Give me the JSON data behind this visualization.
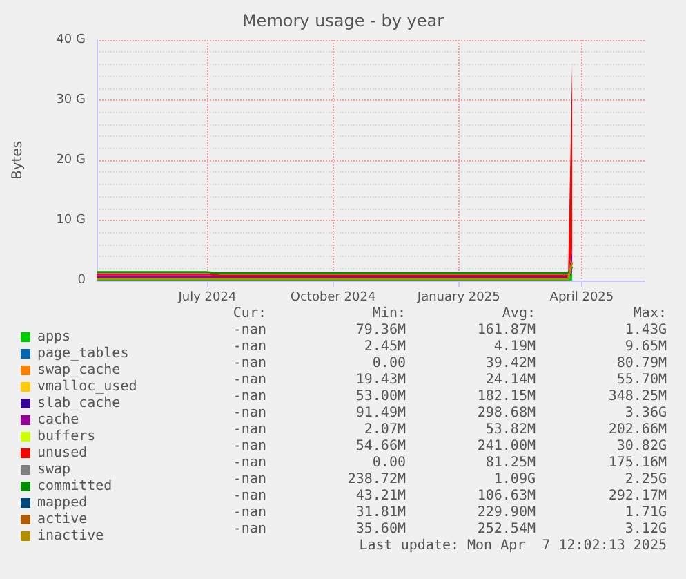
{
  "chart_data": {
    "type": "area",
    "title": "Memory usage - by year",
    "ylabel": "Bytes",
    "stacked": true,
    "grid": true,
    "legend": "bottom",
    "marker": "none",
    "line_style": "solid",
    "x": [
      "2024-04-11",
      "2024-05-20",
      "2024-06-30",
      "2024-07-10",
      "2024-08-20",
      "2024-10-01",
      "2024-11-15",
      "2025-01-01",
      "2025-02-15",
      "2025-03-22",
      "2025-03-25"
    ],
    "xlim": [
      "2024-04-11",
      "2025-05-17"
    ],
    "xticks": [
      {
        "value": "2024-07-01",
        "label": "July 2024"
      },
      {
        "value": "2024-10-01",
        "label": "October 2024"
      },
      {
        "value": "2025-01-01",
        "label": "January 2025"
      },
      {
        "value": "2025-04-01",
        "label": "April 2025"
      }
    ],
    "ylim": [
      0,
      40
    ],
    "yticks": [
      0,
      {
        "value": 10,
        "label": "10 G"
      },
      {
        "value": 20,
        "label": "20 G"
      },
      {
        "value": 30,
        "label": "30 G"
      },
      {
        "value": 40,
        "label": "40 G"
      }
    ],
    "series": [
      {
        "name": "apps",
        "color": "#00cc00",
        "values": [
          0.2,
          0.2,
          0.2,
          0.2,
          0.2,
          0.2,
          0.2,
          0.2,
          0.2,
          0.2,
          1.4
        ]
      },
      {
        "name": "page_tables",
        "color": "#0066b3",
        "values": [
          null,
          null,
          null,
          null,
          null,
          null,
          null,
          null,
          null,
          null,
          null
        ]
      },
      {
        "name": "swap_cache",
        "color": "#ff8000",
        "values": [
          null,
          null,
          null,
          null,
          null,
          null,
          null,
          null,
          null,
          null,
          null
        ]
      },
      {
        "name": "vmalloc_used",
        "color": "#ffcc00",
        "values": [
          null,
          null,
          null,
          null,
          null,
          null,
          null,
          null,
          null,
          null,
          null
        ]
      },
      {
        "name": "slab_cache",
        "color": "#330099",
        "values": [
          0.2,
          0.2,
          0.2,
          0.2,
          0.2,
          0.2,
          0.2,
          0.2,
          0.2,
          0.2,
          0.3
        ]
      },
      {
        "name": "cache",
        "color": "#990099",
        "values": [
          0.5,
          0.5,
          0.5,
          0.3,
          0.3,
          0.3,
          0.3,
          0.3,
          0.3,
          0.3,
          3.4
        ]
      },
      {
        "name": "buffers",
        "color": "#ccff00",
        "values": [
          null,
          null,
          null,
          null,
          null,
          null,
          null,
          null,
          null,
          null,
          null
        ]
      },
      {
        "name": "unused",
        "color": "#ff0000",
        "values": [
          0.3,
          0.3,
          0.3,
          0.3,
          0.3,
          0.3,
          0.3,
          0.3,
          0.3,
          0.3,
          30.8
        ]
      },
      {
        "name": "swap",
        "color": "#808080",
        "values": [
          null,
          null,
          null,
          null,
          null,
          null,
          null,
          null,
          null,
          null,
          null
        ]
      },
      {
        "name": "committed",
        "color": "#008f00",
        "type": "line",
        "values": [
          1.4,
          1.4,
          1.4,
          1.2,
          1.2,
          1.2,
          1.2,
          1.2,
          1.2,
          1.2,
          2.3
        ]
      },
      {
        "name": "mapped",
        "color": "#00487d",
        "type": "line",
        "values": [
          null,
          null,
          null,
          null,
          null,
          null,
          null,
          null,
          null,
          null,
          null
        ]
      },
      {
        "name": "active",
        "color": "#b35a00",
        "type": "line",
        "values": [
          null,
          null,
          null,
          null,
          null,
          null,
          null,
          null,
          null,
          null,
          null
        ]
      },
      {
        "name": "inactive",
        "color": "#b38f00",
        "type": "line",
        "values": [
          0.3,
          0.3,
          0.3,
          0.3,
          0.3,
          0.3,
          0.3,
          0.3,
          0.3,
          0.3,
          3.1
        ]
      }
    ],
    "annotations": [
      "Cur:",
      "Min:",
      "Avg:",
      "Max:",
      "-nan",
      "79.36M",
      "161.87M",
      "1.43G",
      "-nan",
      "2.45M",
      "4.19M",
      "9.65M",
      "-nan",
      "0.00",
      "39.42M",
      "80.79M",
      "-nan",
      "19.43M",
      "24.14M",
      "55.70M",
      "-nan",
      "53.00M",
      "182.15M",
      "348.25M",
      "-nan",
      "91.49M",
      "298.68M",
      "3.36G",
      "-nan",
      "2.07M",
      "53.82M",
      "202.66M",
      "-nan",
      "54.66M",
      "241.00M",
      "30.82G",
      "-nan",
      "0.00",
      "81.25M",
      "175.16M",
      "-nan",
      "238.72M",
      "1.09G",
      "2.25G",
      "-nan",
      "43.21M",
      "106.63M",
      "292.17M",
      "-nan",
      "31.81M",
      "229.90M",
      "1.71G",
      "-nan",
      "35.60M",
      "252.54M",
      "3.12G",
      "Last update: Mon Apr  7 12:02:13 2025"
    ]
  }
}
